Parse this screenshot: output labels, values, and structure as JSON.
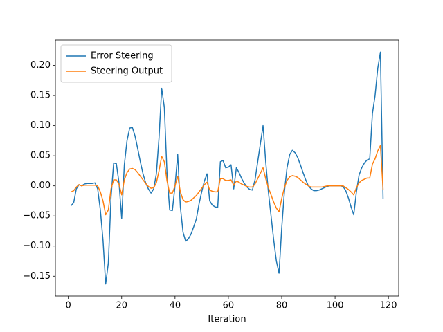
{
  "chart_data": {
    "type": "line",
    "xlabel": "Iteration",
    "x": [
      1,
      2,
      3,
      4,
      5,
      6,
      7,
      8,
      9,
      10,
      11,
      12,
      13,
      14,
      15,
      16,
      17,
      18,
      19,
      20,
      21,
      22,
      23,
      24,
      25,
      26,
      27,
      28,
      29,
      30,
      31,
      32,
      33,
      34,
      35,
      36,
      37,
      38,
      39,
      40,
      41,
      42,
      43,
      44,
      45,
      46,
      47,
      48,
      49,
      50,
      51,
      52,
      53,
      54,
      55,
      56,
      57,
      58,
      59,
      60,
      61,
      62,
      63,
      64,
      65,
      66,
      67,
      68,
      69,
      70,
      71,
      72,
      73,
      74,
      75,
      76,
      77,
      78,
      79,
      80,
      81,
      82,
      83,
      84,
      85,
      86,
      87,
      88,
      89,
      90,
      91,
      92,
      93,
      94,
      95,
      96,
      97,
      98,
      99,
      100,
      101,
      102,
      103,
      104,
      105,
      106,
      107,
      108,
      109,
      110,
      111,
      112,
      113,
      114,
      115,
      116,
      117,
      118
    ],
    "series": [
      {
        "name": "Error Steering",
        "color": "#1f77b4",
        "values": [
          -0.033,
          -0.028,
          -0.005,
          0.002,
          0.0,
          0.003,
          0.004,
          0.004,
          0.004,
          0.005,
          -0.005,
          -0.04,
          -0.09,
          -0.163,
          -0.128,
          -0.02,
          0.038,
          0.037,
          0.005,
          -0.054,
          0.035,
          0.075,
          0.096,
          0.097,
          0.083,
          0.062,
          0.04,
          0.02,
          0.005,
          -0.005,
          -0.012,
          -0.005,
          0.02,
          0.08,
          0.162,
          0.13,
          0.02,
          -0.04,
          -0.041,
          0.0,
          0.052,
          -0.035,
          -0.077,
          -0.092,
          -0.088,
          -0.08,
          -0.068,
          -0.055,
          -0.03,
          -0.01,
          0.008,
          0.02,
          -0.025,
          -0.032,
          -0.035,
          -0.036,
          0.04,
          0.042,
          0.03,
          0.031,
          0.035,
          -0.005,
          0.03,
          0.022,
          0.012,
          0.004,
          -0.002,
          -0.006,
          -0.007,
          0.01,
          0.04,
          0.07,
          0.1,
          0.04,
          -0.01,
          -0.05,
          -0.09,
          -0.125,
          -0.145,
          -0.07,
          -0.01,
          0.03,
          0.052,
          0.059,
          0.055,
          0.047,
          0.035,
          0.022,
          0.01,
          0.0,
          -0.005,
          -0.008,
          -0.008,
          -0.007,
          -0.005,
          -0.003,
          -0.001,
          0.0,
          0.0,
          0.0,
          0.0,
          0.0,
          -0.001,
          -0.008,
          -0.02,
          -0.035,
          -0.048,
          -0.01,
          0.018,
          0.03,
          0.038,
          0.043,
          0.045,
          0.12,
          0.15,
          0.195,
          0.222,
          -0.021
        ]
      },
      {
        "name": "Steering Output",
        "color": "#ff7f0e",
        "values": [
          -0.01,
          -0.008,
          -0.002,
          0.002,
          0.0,
          0.001,
          0.001,
          0.001,
          0.001,
          0.001,
          0.0,
          -0.01,
          -0.025,
          -0.048,
          -0.04,
          -0.005,
          0.01,
          0.01,
          0.003,
          -0.015,
          0.01,
          0.022,
          0.028,
          0.029,
          0.027,
          0.022,
          0.016,
          0.01,
          0.004,
          -0.001,
          -0.004,
          -0.003,
          0.005,
          0.025,
          0.049,
          0.04,
          0.008,
          -0.012,
          -0.012,
          0.0,
          0.016,
          -0.01,
          -0.023,
          -0.027,
          -0.026,
          -0.024,
          -0.02,
          -0.016,
          -0.01,
          -0.004,
          0.002,
          0.006,
          -0.007,
          -0.009,
          -0.01,
          -0.01,
          0.012,
          0.012,
          0.009,
          0.009,
          0.01,
          0.001,
          0.008,
          0.006,
          0.003,
          0.001,
          -0.001,
          -0.002,
          -0.002,
          0.003,
          0.012,
          0.021,
          0.03,
          0.012,
          -0.003,
          -0.015,
          -0.027,
          -0.037,
          -0.043,
          -0.021,
          -0.003,
          0.009,
          0.015,
          0.017,
          0.016,
          0.014,
          0.01,
          0.006,
          0.003,
          0.0,
          -0.002,
          -0.002,
          -0.002,
          -0.002,
          -0.002,
          -0.001,
          0.0,
          0.0,
          0.0,
          0.0,
          0.0,
          0.0,
          0.0,
          -0.003,
          -0.006,
          -0.01,
          -0.015,
          -0.003,
          0.005,
          0.009,
          0.011,
          0.013,
          0.013,
          0.036,
          0.045,
          0.058,
          0.067,
          -0.006
        ]
      }
    ],
    "xlim": [
      -4.85,
      123.85
    ],
    "xticks": [
      0,
      20,
      40,
      60,
      80,
      100,
      120
    ],
    "ylim": [
      -0.183,
      0.242
    ],
    "yticks": [
      {
        "value": -0.15,
        "label": "−0.15"
      },
      {
        "value": -0.1,
        "label": "−0.10"
      },
      {
        "value": -0.05,
        "label": "−0.05"
      },
      {
        "value": 0,
        "label": "0.00"
      },
      {
        "value": 0.05,
        "label": "0.05"
      },
      {
        "value": 0.1,
        "label": "0.10"
      },
      {
        "value": 0.15,
        "label": "0.15"
      },
      {
        "value": 0.2,
        "label": "0.20"
      }
    ],
    "legend": "upper left",
    "grid": false
  }
}
